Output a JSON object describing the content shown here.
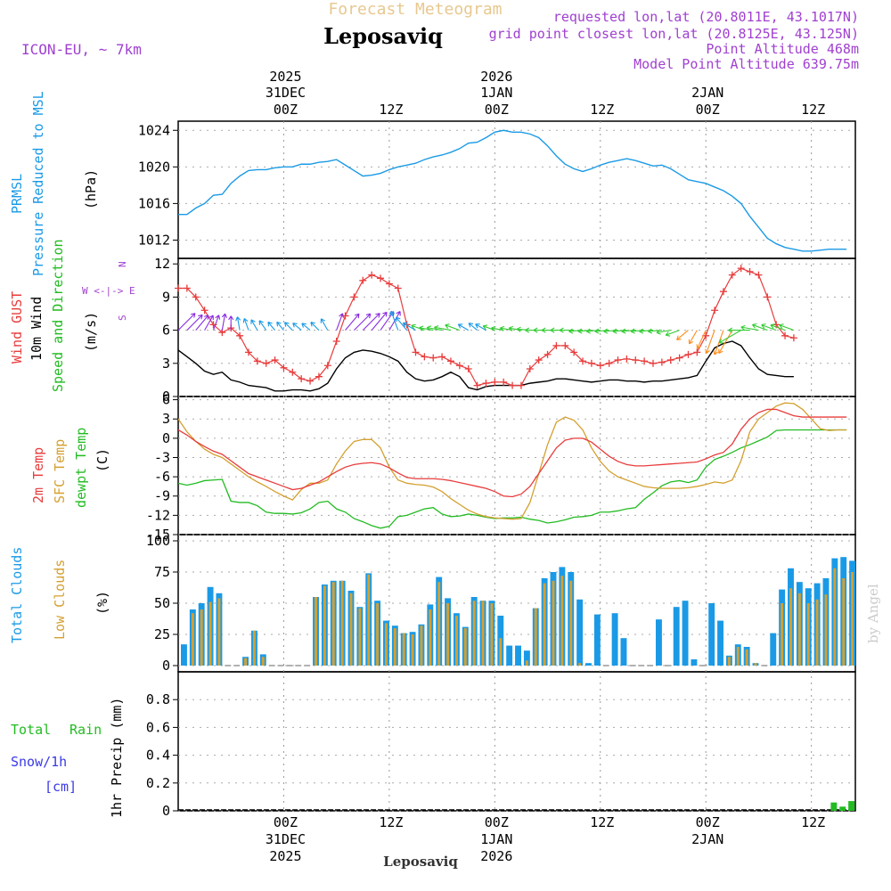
{
  "header": {
    "title": "Forecast Meteogram",
    "location": "Leposaviq",
    "model": "ICON-EU, ~ 7km",
    "requested": "requested lon,lat (20.8011E, 43.1017N)",
    "grid_point": "grid point closest lon,lat (20.8125E, 43.125N)",
    "point_altitude": "Point Altitude 468m",
    "model_altitude": "Model Point Altitude 639.75m",
    "footer_location": "Leposaviq",
    "credit": "by Angel"
  },
  "colors": {
    "pressure": "#1a9ae6",
    "gust": "#e83c3c",
    "wind": "#000000",
    "direction": "#22bb22",
    "temp": "#e83c3c",
    "sfc": "#d4a030",
    "dewpt": "#22bb22",
    "total_clouds": "#1a9ae6",
    "low_clouds": "#d4a030",
    "rain": "#22bb22",
    "snow": "#3a3ae6",
    "label_purple": "#a040d0"
  },
  "time_axis": {
    "top": [
      {
        "label": "00Z",
        "day": "31DEC",
        "year": "2025",
        "hour": 12
      },
      {
        "label": "12Z",
        "day": "",
        "year": "",
        "hour": 24
      },
      {
        "label": "00Z",
        "day": "1JAN",
        "year": "2026",
        "hour": 36
      },
      {
        "label": "12Z",
        "day": "",
        "year": "",
        "hour": 48
      },
      {
        "label": "00Z",
        "day": "2JAN",
        "year": "",
        "hour": 60
      },
      {
        "label": "12Z",
        "day": "",
        "year": "",
        "hour": 72
      }
    ]
  },
  "panels": {
    "pressure": {
      "labels": [
        "PRMSL",
        "Pressure Reduced to MSL"
      ],
      "unit": "(hPa)",
      "yticks": [
        1012,
        1016,
        1020,
        1024
      ]
    },
    "wind": {
      "labels": [
        "Wind GUST",
        "10m Wind",
        "Speed and Direction"
      ],
      "unit": "(m/s)",
      "compass_n": "N",
      "compass_ew": "W <-|-> E",
      "compass_s": "S",
      "yticks": [
        0,
        3,
        6,
        9,
        12
      ]
    },
    "temperature": {
      "labels": [
        "2m Temp",
        "SFC Temp",
        "dewpt Temp"
      ],
      "unit": "(C)",
      "yticks": [
        -15,
        -12,
        -9,
        -6,
        -3,
        0,
        3,
        6
      ]
    },
    "clouds": {
      "labels": [
        "Total Clouds",
        "Low Clouds"
      ],
      "unit": "(%)",
      "yticks": [
        0,
        25,
        50,
        75,
        100
      ]
    },
    "precip": {
      "labels": [
        "Total",
        "Rain",
        "Snow/1h",
        "[cm]"
      ],
      "unit": "1hr Precip (mm)",
      "yticks": [
        "0",
        "0.2",
        "0.4",
        "0.6",
        "0.8"
      ]
    }
  },
  "chart_data": {
    "type": "line",
    "x_hours": [
      0,
      77
    ],
    "pressure": {
      "ylim": [
        1010,
        1025
      ],
      "x": [
        0,
        1,
        2,
        3,
        4,
        5,
        6,
        7,
        8,
        9,
        10,
        11,
        12,
        13,
        14,
        15,
        16,
        17,
        18,
        19,
        20,
        21,
        22,
        23,
        24,
        25,
        26,
        27,
        28,
        29,
        30,
        31,
        32,
        33,
        34,
        35,
        36,
        37,
        38,
        39,
        40,
        41,
        42,
        43,
        44,
        45,
        46,
        47,
        48,
        49,
        50,
        51,
        52,
        53,
        54,
        55,
        56,
        57,
        58,
        59,
        60,
        61,
        62,
        63,
        64,
        65,
        66,
        67,
        68,
        69,
        70,
        71,
        72,
        73,
        74,
        75,
        76
      ],
      "values": [
        1014.8,
        1014.8,
        1015.5,
        1016.0,
        1016.9,
        1017.0,
        1018.2,
        1019.0,
        1019.6,
        1019.7,
        1019.7,
        1019.9,
        1020.0,
        1020.0,
        1020.3,
        1020.3,
        1020.5,
        1020.6,
        1020.8,
        1020.2,
        1019.6,
        1019.0,
        1019.1,
        1019.3,
        1019.7,
        1020.0,
        1020.2,
        1020.4,
        1020.8,
        1021.1,
        1021.3,
        1021.6,
        1022.0,
        1022.6,
        1022.7,
        1023.2,
        1023.8,
        1024.0,
        1023.8,
        1023.8,
        1023.6,
        1023.2,
        1022.3,
        1021.2,
        1020.3,
        1019.8,
        1019.5,
        1019.8,
        1020.2,
        1020.5,
        1020.7,
        1020.9,
        1020.7,
        1020.4,
        1020.1,
        1020.2,
        1019.8,
        1019.2,
        1018.6,
        1018.4,
        1018.2,
        1017.8,
        1017.4,
        1016.8,
        1016.0,
        1014.6,
        1013.4,
        1012.2,
        1011.6,
        1011.2,
        1011.0,
        1010.8,
        1010.8,
        1010.9,
        1011.0,
        1011.0,
        1011.0
      ]
    },
    "wind": {
      "ylim": [
        0,
        12.5
      ],
      "x": [
        0,
        1,
        2,
        3,
        4,
        5,
        6,
        7,
        8,
        9,
        10,
        11,
        12,
        13,
        14,
        15,
        16,
        17,
        18,
        19,
        20,
        21,
        22,
        23,
        24,
        25,
        26,
        27,
        28,
        29,
        30,
        31,
        32,
        33,
        34,
        35,
        36,
        37,
        38,
        39,
        40,
        41,
        42,
        43,
        44,
        45,
        46,
        47,
        48,
        49,
        50,
        51,
        52,
        53,
        54,
        55,
        56,
        57,
        58,
        59,
        60,
        61,
        62,
        63,
        64,
        65,
        66,
        67,
        68,
        69,
        70,
        71,
        72,
        73,
        74,
        75,
        76
      ],
      "gust": [
        9.8,
        9.8,
        9.0,
        7.8,
        6.5,
        5.8,
        6.2,
        5.5,
        4.0,
        3.2,
        3.0,
        3.3,
        2.6,
        2.2,
        1.6,
        1.4,
        1.8,
        2.8,
        5.0,
        7.3,
        9.0,
        10.5,
        11.0,
        10.7,
        10.2,
        9.8,
        6.5,
        4.0,
        3.6,
        3.5,
        3.6,
        3.2,
        2.8,
        2.5,
        1.0,
        1.2,
        1.3,
        1.3,
        1.0,
        1.0,
        2.5,
        3.3,
        3.8,
        4.6,
        4.6,
        4.0,
        3.2,
        3.0,
        2.8,
        3.0,
        3.3,
        3.4,
        3.3,
        3.2,
        3.0,
        3.1,
        3.3,
        3.5,
        3.8,
        4.0,
        5.5,
        7.8,
        9.5,
        11.0,
        11.6,
        11.3,
        11.0,
        9.0,
        6.5,
        5.5,
        5.3
      ],
      "speed": [
        4.2,
        3.6,
        3.0,
        2.3,
        2.0,
        2.2,
        1.5,
        1.3,
        1.0,
        0.9,
        0.8,
        0.5,
        0.5,
        0.6,
        0.6,
        0.5,
        0.7,
        1.2,
        2.5,
        3.5,
        4.0,
        4.2,
        4.1,
        3.9,
        3.6,
        3.2,
        2.2,
        1.6,
        1.4,
        1.5,
        1.8,
        2.2,
        1.8,
        0.8,
        0.6,
        0.9,
        1.0,
        1.0,
        1.0,
        1.0,
        1.2,
        1.3,
        1.4,
        1.6,
        1.6,
        1.5,
        1.4,
        1.3,
        1.4,
        1.5,
        1.5,
        1.4,
        1.4,
        1.3,
        1.4,
        1.4,
        1.5,
        1.6,
        1.7,
        1.9,
        3.2,
        4.4,
        4.8,
        5.0,
        4.6,
        3.5,
        2.5,
        2.0,
        1.9,
        1.8,
        1.8
      ],
      "dir_deg": [
        225,
        225,
        220,
        210,
        200,
        190,
        180,
        170,
        160,
        150,
        145,
        140,
        140,
        135,
        130,
        130,
        135,
        150,
        200,
        220,
        225,
        225,
        220,
        215,
        210,
        160,
        140,
        120,
        110,
        100,
        100,
        100,
        110,
        120,
        130,
        120,
        110,
        100,
        100,
        100,
        95,
        90,
        90,
        90,
        90,
        90,
        85,
        85,
        85,
        85,
        85,
        85,
        85,
        85,
        85,
        85,
        80,
        70,
        50,
        30,
        25,
        20,
        20,
        30,
        60,
        90,
        100,
        110,
        110,
        110,
        110
      ]
    },
    "temperature": {
      "ylim": [
        -15,
        6.5
      ],
      "x": [
        0,
        1,
        2,
        3,
        4,
        5,
        6,
        7,
        8,
        9,
        10,
        11,
        12,
        13,
        14,
        15,
        16,
        17,
        18,
        19,
        20,
        21,
        22,
        23,
        24,
        25,
        26,
        27,
        28,
        29,
        30,
        31,
        32,
        33,
        34,
        35,
        36,
        37,
        38,
        39,
        40,
        41,
        42,
        43,
        44,
        45,
        46,
        47,
        48,
        49,
        50,
        51,
        52,
        53,
        54,
        55,
        56,
        57,
        58,
        59,
        60,
        61,
        62,
        63,
        64,
        65,
        66,
        67,
        68,
        69,
        70,
        71,
        72,
        73,
        74,
        75,
        76
      ],
      "t2m": [
        1.3,
        0.5,
        -0.5,
        -1.3,
        -2.0,
        -2.5,
        -3.5,
        -4.5,
        -5.5,
        -6.0,
        -6.5,
        -7.0,
        -7.5,
        -8.0,
        -7.8,
        -7.3,
        -6.8,
        -6.0,
        -5.2,
        -4.5,
        -4.1,
        -3.9,
        -3.8,
        -4.0,
        -4.6,
        -5.4,
        -6.1,
        -6.3,
        -6.3,
        -6.3,
        -6.4,
        -6.6,
        -6.9,
        -7.2,
        -7.5,
        -7.8,
        -8.3,
        -9.0,
        -9.1,
        -8.7,
        -7.5,
        -5.5,
        -3.5,
        -1.5,
        -0.3,
        0.0,
        0.0,
        -0.6,
        -1.7,
        -2.8,
        -3.6,
        -4.1,
        -4.3,
        -4.3,
        -4.2,
        -4.1,
        -4.0,
        -3.9,
        -3.8,
        -3.7,
        -3.2,
        -2.6,
        -2.2,
        -0.9,
        1.4,
        3.0,
        4.0,
        4.5,
        4.5,
        4.0,
        3.5,
        3.3,
        3.3,
        3.3,
        3.3,
        3.3,
        3.3
      ],
      "sfc": [
        3.0,
        1.0,
        -0.5,
        -1.7,
        -2.5,
        -3.0,
        -4.0,
        -5.0,
        -6.0,
        -6.8,
        -7.5,
        -8.3,
        -9.0,
        -9.6,
        -8.0,
        -7.0,
        -7.0,
        -6.5,
        -4.0,
        -2.0,
        -0.5,
        -0.2,
        -0.2,
        -1.5,
        -4.5,
        -6.5,
        -7.0,
        -7.2,
        -7.3,
        -7.6,
        -8.3,
        -9.4,
        -10.3,
        -11.2,
        -11.8,
        -12.2,
        -12.4,
        -12.5,
        -12.6,
        -12.5,
        -10.0,
        -5.5,
        -1.0,
        2.5,
        3.3,
        2.8,
        1.3,
        -1.5,
        -3.6,
        -5.1,
        -6.0,
        -6.5,
        -7.0,
        -7.5,
        -7.7,
        -7.8,
        -7.8,
        -7.8,
        -7.7,
        -7.5,
        -7.2,
        -6.8,
        -7.0,
        -6.5,
        -3.5,
        1.0,
        3.0,
        4.0,
        5.0,
        5.5,
        5.4,
        4.5,
        3.0,
        1.5,
        1.2,
        1.3,
        1.3
      ],
      "dewpt": [
        -7.0,
        -7.3,
        -7.0,
        -6.6,
        -6.5,
        -6.4,
        -9.8,
        -10.0,
        -10.0,
        -10.5,
        -11.5,
        -11.7,
        -11.7,
        -11.8,
        -11.6,
        -11.0,
        -10.0,
        -9.8,
        -11.0,
        -11.5,
        -12.5,
        -13.0,
        -13.6,
        -14.0,
        -13.7,
        -12.2,
        -12.0,
        -11.5,
        -11.0,
        -10.8,
        -11.8,
        -12.2,
        -12.1,
        -11.8,
        -12.0,
        -12.3,
        -12.5,
        -12.4,
        -12.4,
        -12.3,
        -12.6,
        -12.8,
        -13.2,
        -13.0,
        -12.7,
        -12.3,
        -12.2,
        -12.0,
        -11.5,
        -11.5,
        -11.3,
        -11.0,
        -10.8,
        -9.5,
        -8.5,
        -7.4,
        -6.8,
        -6.6,
        -6.9,
        -6.5,
        -4.5,
        -3.3,
        -2.8,
        -2.2,
        -1.5,
        -1.0,
        -0.4,
        0.2,
        1.2,
        1.3,
        1.3,
        1.3,
        1.3,
        1.3,
        1.3,
        1.3,
        1.3
      ]
    },
    "clouds": {
      "ylim": [
        0,
        100
      ],
      "x": [
        0,
        1,
        2,
        3,
        4,
        5,
        6,
        7,
        8,
        9,
        10,
        11,
        12,
        13,
        14,
        15,
        16,
        17,
        18,
        19,
        20,
        21,
        22,
        23,
        24,
        25,
        26,
        27,
        28,
        29,
        30,
        31,
        32,
        33,
        34,
        35,
        36,
        37,
        38,
        39,
        40,
        41,
        42,
        43,
        44,
        45,
        46,
        47,
        48,
        49,
        50,
        51,
        52,
        53,
        54,
        55,
        56,
        57,
        58,
        59,
        60,
        61,
        62,
        63,
        64,
        65,
        66,
        67,
        68,
        69,
        70,
        71,
        72,
        73,
        74,
        75,
        76
      ],
      "total": [
        17,
        45,
        50,
        63,
        58,
        0,
        0,
        7,
        28,
        9,
        0,
        0,
        0,
        0,
        0,
        55,
        65,
        68,
        68,
        60,
        47,
        74,
        52,
        36,
        32,
        26,
        27,
        33,
        49,
        71,
        54,
        42,
        31,
        55,
        52,
        52,
        40,
        16,
        16,
        12,
        46,
        70,
        75,
        79,
        75,
        53,
        2,
        41,
        0,
        42,
        22,
        0,
        0,
        0,
        37,
        0,
        47,
        52,
        5,
        0,
        50,
        36,
        8,
        17,
        15,
        2,
        0,
        26,
        61,
        78,
        67,
        62,
        66,
        70,
        86,
        87,
        84
      ],
      "low": [
        0,
        42,
        45,
        51,
        54,
        0,
        0,
        6,
        28,
        7,
        0,
        0,
        0,
        0,
        0,
        55,
        64,
        67,
        68,
        58,
        46,
        73,
        50,
        34,
        30,
        26,
        25,
        32,
        45,
        67,
        50,
        40,
        30,
        52,
        52,
        50,
        22,
        0,
        0,
        4,
        46,
        66,
        68,
        72,
        68,
        2,
        0,
        0,
        0,
        0,
        0,
        0,
        0,
        0,
        0,
        0,
        0,
        0,
        0,
        0,
        0,
        0,
        7,
        15,
        13,
        2,
        0,
        0,
        50,
        62,
        58,
        50,
        53,
        57,
        78,
        70,
        75
      ]
    },
    "precip": {
      "ylim": [
        0,
        1.0
      ],
      "x": [
        74,
        75,
        76
      ],
      "rain": [
        0.06,
        0.03,
        0.07
      ]
    }
  }
}
